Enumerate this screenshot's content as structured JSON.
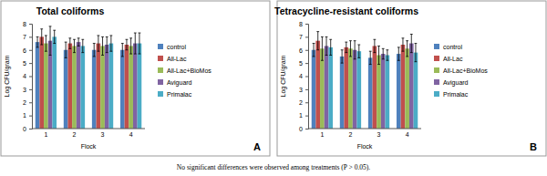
{
  "chart_data": [
    {
      "type": "bar",
      "title": "Total coliforms",
      "x_label": "Flock",
      "y_label": "Log CFU/gram",
      "categories": [
        "1",
        "2",
        "3",
        "4"
      ],
      "series": [
        {
          "name": "control",
          "color": "#4f81bd",
          "values": [
            6.6,
            6.0,
            6.0,
            6.0
          ],
          "errors": [
            0.4,
            0.6,
            0.5,
            0.5
          ]
        },
        {
          "name": "All-Lac",
          "color": "#c0504d",
          "values": [
            7.0,
            6.5,
            6.5,
            6.4
          ],
          "errors": [
            0.6,
            0.4,
            0.6,
            0.4
          ]
        },
        {
          "name": "All-Lac+BioMos",
          "color": "#9bbb59",
          "values": [
            6.5,
            6.3,
            6.3,
            6.3
          ],
          "errors": [
            0.6,
            0.5,
            0.7,
            0.6
          ]
        },
        {
          "name": "Aviguard",
          "color": "#8064a2",
          "values": [
            6.7,
            6.6,
            6.4,
            6.5
          ],
          "errors": [
            1.1,
            0.3,
            0.6,
            0.8
          ]
        },
        {
          "name": "Primalac",
          "color": "#4bacc6",
          "values": [
            7.0,
            6.3,
            6.5,
            6.5
          ],
          "errors": [
            0.5,
            0.5,
            0.6,
            0.8
          ]
        }
      ],
      "ylim": [
        0,
        8
      ],
      "yticks": [
        0,
        1,
        2,
        3,
        4,
        5,
        6,
        7,
        8
      ],
      "grid": false,
      "legend": "right",
      "annotations": [
        "A"
      ]
    },
    {
      "type": "bar",
      "title": "Tetracycline-resistant coliforms",
      "x_label": "Flock",
      "y_label": "Log CFU/gram",
      "categories": [
        "1",
        "2",
        "3",
        "4"
      ],
      "series": [
        {
          "name": "control",
          "color": "#4f81bd",
          "values": [
            6.0,
            5.5,
            5.4,
            5.7
          ],
          "errors": [
            0.5,
            0.5,
            0.5,
            0.5
          ]
        },
        {
          "name": "All-Lac",
          "color": "#c0504d",
          "values": [
            6.7,
            6.2,
            6.3,
            6.4
          ],
          "errors": [
            0.7,
            0.4,
            0.5,
            0.5
          ]
        },
        {
          "name": "All-Lac+BioMos",
          "color": "#9bbb59",
          "values": [
            6.1,
            6.1,
            5.6,
            6.1
          ],
          "errors": [
            0.9,
            0.6,
            0.7,
            0.6
          ]
        },
        {
          "name": "Aviguard",
          "color": "#8064a2",
          "values": [
            6.3,
            6.0,
            5.7,
            6.5
          ],
          "errors": [
            0.7,
            0.7,
            0.4,
            0.7
          ]
        },
        {
          "name": "Primalac",
          "color": "#4bacc6",
          "values": [
            6.2,
            5.9,
            5.6,
            5.8
          ],
          "errors": [
            0.6,
            0.5,
            0.4,
            0.7
          ]
        }
      ],
      "ylim": [
        0,
        8
      ],
      "yticks": [
        0,
        1,
        2,
        3,
        4,
        5,
        6,
        7,
        8
      ],
      "grid": false,
      "legend": "right",
      "annotations": [
        "B"
      ]
    }
  ],
  "caption": "No significant differences were observed among treatments (P > 0.05)."
}
